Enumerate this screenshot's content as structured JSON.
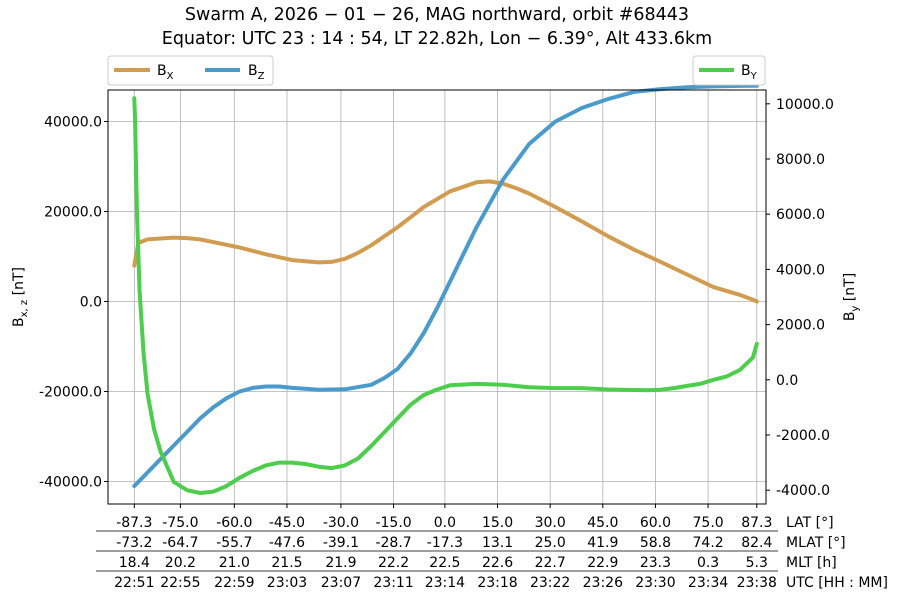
{
  "title_line1": "Swarm A,  2026 − 01 − 26,  MAG northward,  orbit #68443",
  "title_line2": "Equator:  UTC 23 : 14 : 54,  LT 22.82h,  Lon  − 6.39°,  Alt 433.6km",
  "chart_data": {
    "type": "line",
    "left_axis": {
      "label_main": "B",
      "label_sub": "x, z",
      "label_unit": " [nT]",
      "ylim": [
        -45000,
        47000
      ],
      "ticks": [
        40000,
        20000,
        0,
        -20000,
        -40000
      ],
      "tick_labels": [
        "40000.0",
        "20000.0",
        "0.0",
        "-20000.0",
        "-40000.0"
      ]
    },
    "right_axis": {
      "label_main": "B",
      "label_sub": "y",
      "label_unit": " [nT]",
      "ylim": [
        -4500,
        10500
      ],
      "ticks": [
        10000,
        8000,
        6000,
        4000,
        2000,
        0,
        -2000,
        -4000
      ],
      "tick_labels": [
        "10000.0",
        "8000.0",
        "6000.0",
        "4000.0",
        "2000.0",
        "0.0",
        "-2000.0",
        "-4000.0"
      ]
    },
    "x_axis": {
      "xlim": [
        -2.0,
        48.0
      ],
      "tick_positions": [
        0,
        3.5,
        7.6,
        11.6,
        15.7,
        19.7,
        23.6,
        27.6,
        31.6,
        35.6,
        39.6,
        43.6,
        47.3
      ]
    },
    "table_rows": [
      {
        "label": "LAT [°]",
        "values": [
          "-87.3",
          "-75.0",
          "-60.0",
          "-45.0",
          "-30.0",
          "-15.0",
          "0.0",
          "15.0",
          "30.0",
          "45.0",
          "60.0",
          "75.0",
          "87.3"
        ]
      },
      {
        "label": "MLAT [°]",
        "values": [
          "-73.2",
          "-64.7",
          "-55.7",
          "-47.6",
          "-39.1",
          "-28.7",
          "-17.3",
          "13.1",
          "25.0",
          "41.9",
          "58.8",
          "74.2",
          "82.4"
        ]
      },
      {
        "label": "MLT [h]",
        "values": [
          "18.4",
          "20.2",
          "21.0",
          "21.5",
          "21.9",
          "22.2",
          "22.5",
          "22.6",
          "22.7",
          "22.9",
          "23.3",
          "0.3",
          "5.3"
        ]
      },
      {
        "label": "UTC [HH : MM]",
        "values": [
          "22:51",
          "22:55",
          "22:59",
          "23:03",
          "23:07",
          "23:11",
          "23:14",
          "23:18",
          "23:22",
          "23:26",
          "23:30",
          "23:34",
          "23:38"
        ]
      }
    ],
    "series": [
      {
        "name": "B",
        "name_sub": "X",
        "axis": "left",
        "color": "#d29c50",
        "x": [
          0,
          0.3,
          1,
          2,
          3,
          4,
          5,
          6,
          8,
          10,
          12,
          14,
          15,
          16,
          17,
          18,
          20,
          22,
          24,
          26,
          27,
          28,
          29,
          30,
          32,
          34,
          36,
          38,
          40,
          42,
          44,
          46,
          47,
          47.3
        ],
        "y": [
          8000,
          13000,
          13800,
          14000,
          14200,
          14100,
          13800,
          13200,
          12000,
          10500,
          9200,
          8700,
          8800,
          9500,
          10800,
          12500,
          16500,
          21000,
          24500,
          26500,
          26700,
          26200,
          25200,
          24000,
          21000,
          17800,
          14500,
          11500,
          8800,
          6000,
          3200,
          1500,
          400,
          0
        ]
      },
      {
        "name": "B",
        "name_sub": "Z",
        "axis": "left",
        "color": "#4a9acc",
        "x": [
          0,
          0.5,
          1,
          2,
          3,
          4,
          5,
          6,
          7,
          8,
          9,
          10,
          11,
          12,
          13,
          14,
          16,
          18,
          19,
          20,
          21,
          22,
          23,
          24,
          25,
          26,
          28,
          30,
          32,
          34,
          36,
          38,
          40,
          42,
          44,
          46,
          47,
          47.3
        ],
        "y": [
          -41000,
          -39500,
          -38000,
          -35000,
          -32000,
          -29000,
          -26000,
          -23500,
          -21500,
          -20000,
          -19200,
          -18900,
          -18900,
          -19200,
          -19400,
          -19600,
          -19500,
          -18500,
          -17000,
          -15000,
          -11500,
          -7000,
          -1500,
          4500,
          10500,
          16500,
          27000,
          35000,
          40000,
          43000,
          45000,
          46600,
          47200,
          47600,
          47800,
          47900,
          47950,
          47950
        ]
      },
      {
        "name": "B",
        "name_sub": "Y",
        "axis": "right",
        "color": "#4ccd4c",
        "x": [
          0,
          0.05,
          0.2,
          0.4,
          0.7,
          1,
          1.5,
          2,
          3,
          4,
          5,
          6,
          7,
          8,
          9,
          10,
          11,
          12,
          13,
          14,
          15,
          16,
          17,
          18,
          19,
          20,
          21,
          22,
          23,
          24,
          26,
          28,
          30,
          32,
          34,
          36,
          38,
          39,
          40,
          41,
          42,
          43,
          44,
          45,
          46,
          47,
          47.3
        ],
        "y": [
          10200,
          9500,
          6000,
          3200,
          1000,
          -500,
          -1800,
          -2600,
          -3700,
          -4000,
          -4100,
          -4050,
          -3850,
          -3550,
          -3300,
          -3100,
          -3000,
          -3000,
          -3050,
          -3150,
          -3200,
          -3100,
          -2850,
          -2400,
          -1900,
          -1400,
          -900,
          -550,
          -350,
          -200,
          -150,
          -180,
          -270,
          -300,
          -300,
          -350,
          -370,
          -380,
          -360,
          -300,
          -220,
          -150,
          0,
          120,
          350,
          800,
          1300
        ]
      }
    ]
  }
}
